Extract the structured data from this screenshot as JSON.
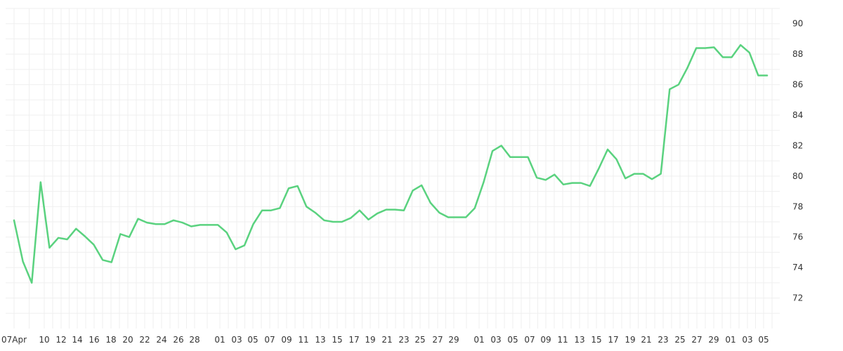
{
  "colors": {
    "series": "#5ad27f",
    "grid": "#efefef",
    "text": "#333333",
    "background": "#ffffff"
  },
  "chart_data": {
    "type": "line",
    "title": "",
    "xlabel": "",
    "ylabel": "",
    "ylim": [
      70,
      91
    ],
    "grid": true,
    "y_ticks": [
      72,
      74,
      76,
      78,
      80,
      82,
      84,
      86,
      88,
      90
    ],
    "x_tick_labels": [
      "07Apr",
      "10",
      "12",
      "14",
      "16",
      "18",
      "20",
      "22",
      "24",
      "26",
      "28",
      "01",
      "03",
      "05",
      "07",
      "09",
      "11",
      "13",
      "15",
      "17",
      "19",
      "21",
      "23",
      "25",
      "27",
      "29",
      "01",
      "03",
      "05",
      "07",
      "09",
      "11",
      "13",
      "15",
      "17",
      "19",
      "21",
      "23",
      "25",
      "27",
      "29",
      "01",
      "03",
      "05"
    ],
    "series": [
      {
        "values": [
          77.1,
          74.4,
          73.0,
          79.6,
          75.3,
          75.95,
          75.85,
          76.55,
          76.05,
          75.5,
          74.5,
          74.35,
          76.2,
          76.0,
          77.2,
          76.95,
          76.85,
          76.85,
          77.1,
          76.95,
          76.7,
          76.8,
          76.8,
          76.8,
          76.3,
          75.2,
          75.45,
          76.85,
          77.75,
          77.75,
          77.9,
          79.2,
          79.35,
          78.0,
          77.6,
          77.1,
          77.0,
          77.0,
          77.25,
          77.75,
          77.15,
          77.55,
          77.8,
          77.8,
          77.75,
          79.05,
          79.4,
          78.25,
          77.6,
          77.3,
          77.3,
          77.3,
          77.9,
          79.6,
          81.65,
          82.0,
          81.25,
          81.25,
          81.25,
          79.9,
          79.75,
          80.1,
          79.45,
          79.55,
          79.55,
          79.35,
          80.5,
          81.75,
          81.1,
          79.85,
          80.15,
          80.15,
          79.8,
          80.15,
          85.7,
          86.0,
          87.1,
          88.4,
          88.4,
          88.45,
          87.8,
          87.8,
          88.6,
          88.1,
          86.6,
          86.6
        ]
      }
    ]
  }
}
